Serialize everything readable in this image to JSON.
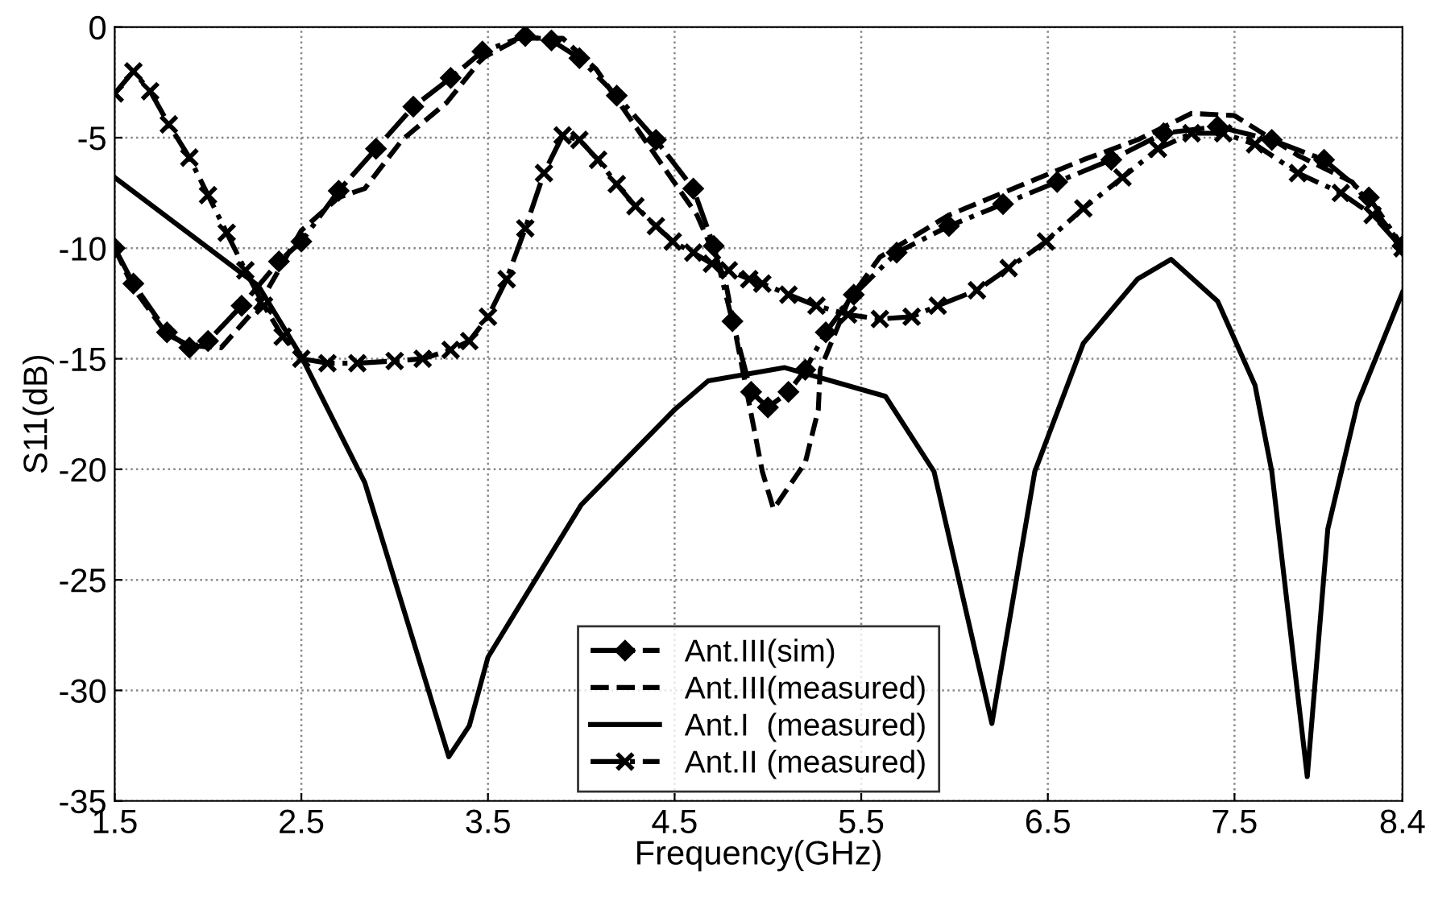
{
  "chart_data": {
    "type": "line",
    "xlabel": "Frequency(GHz)",
    "ylabel": "S11(dB)",
    "xlim": [
      1.5,
      8.4
    ],
    "xticks": [
      1.5,
      2.5,
      3.5,
      4.5,
      5.5,
      6.5,
      7.5,
      8.4
    ],
    "ylim": [
      -35,
      0
    ],
    "yticks": [
      -35,
      -30,
      -25,
      -20,
      -15,
      -10,
      -5,
      0
    ],
    "grid": true,
    "legend": "bottom",
    "series": [
      {
        "name": "Ant.III(sim)",
        "color": "#000000",
        "marker": "diamond",
        "line_style": "dashdot",
        "x": [
          1.5,
          1.6,
          1.78,
          1.9,
          2.0,
          2.18,
          2.38,
          2.5,
          2.7,
          2.9,
          3.1,
          3.3,
          3.47,
          3.7,
          3.84,
          3.99,
          4.19,
          4.4,
          4.6,
          4.71,
          4.81,
          4.91,
          5.0,
          5.11,
          5.2,
          5.31,
          5.46,
          5.69,
          5.97,
          6.26,
          6.55,
          6.84,
          7.12,
          7.41,
          7.7,
          7.98,
          8.22,
          8.4
        ],
        "values": [
          -10,
          -11.6,
          -13.8,
          -14.5,
          -14.2,
          -12.6,
          -10.6,
          -9.7,
          -7.4,
          -5.5,
          -3.6,
          -2.3,
          -1.1,
          -0.4,
          -0.6,
          -1.4,
          -3.1,
          -5.1,
          -7.3,
          -9.9,
          -13.3,
          -16.5,
          -17.2,
          -16.5,
          -15.5,
          -13.8,
          -12.1,
          -10.2,
          -9.0,
          -8.0,
          -7.0,
          -6.0,
          -4.8,
          -4.5,
          -5.1,
          -6.0,
          -7.7,
          -9.9
        ]
      },
      {
        "name": "Ant.III(measured)",
        "color": "#000000",
        "marker": "none",
        "line_style": "dashed",
        "x": [
          1.5,
          1.6,
          1.78,
          1.9,
          2.07,
          2.27,
          2.5,
          2.7,
          2.84,
          3.04,
          3.28,
          3.47,
          3.67,
          3.9,
          4.08,
          4.34,
          4.62,
          4.77,
          4.97,
          5.03,
          5.2,
          5.27,
          5.28,
          5.43,
          5.6,
          5.97,
          6.4,
          6.69,
          6.98,
          7.27,
          7.5,
          7.84,
          8.13,
          8.4
        ],
        "values": [
          -10,
          -11.8,
          -13.9,
          -14.4,
          -14.5,
          -12.6,
          -9.2,
          -7.7,
          -7.3,
          -5.1,
          -3.4,
          -1.4,
          -0.5,
          -0.5,
          -1.9,
          -5.1,
          -8.5,
          -11.4,
          -20.1,
          -21.8,
          -19.7,
          -17.3,
          -15.5,
          -12.4,
          -10.4,
          -8.5,
          -7.0,
          -6.0,
          -5.1,
          -3.9,
          -4.0,
          -5.8,
          -7.0,
          -9.9
        ]
      },
      {
        "name": "Ant.I  (measured)",
        "color": "#000000",
        "marker": "none",
        "line_style": "solid",
        "x": [
          1.5,
          2.27,
          2.5,
          2.84,
          3.29,
          3.4,
          3.5,
          4.0,
          4.5,
          4.68,
          5.09,
          5.63,
          5.89,
          6.2,
          6.43,
          6.69,
          6.98,
          7.16,
          7.41,
          7.61,
          7.7,
          7.89,
          8.0,
          8.16,
          8.4
        ],
        "values": [
          -6.8,
          -11.7,
          -14.9,
          -20.6,
          -33,
          -31.6,
          -28.5,
          -21.6,
          -17.3,
          -16,
          -15.4,
          -16.7,
          -20.1,
          -31.5,
          -20.1,
          -14.3,
          -11.4,
          -10.5,
          -12.4,
          -16.2,
          -20.1,
          -33.9,
          -22.7,
          -17,
          -12
        ]
      },
      {
        "name": "Ant.II (measured)",
        "color": "#000000",
        "marker": "cross",
        "line_style": "dashdot",
        "x": [
          1.5,
          1.6,
          1.69,
          1.79,
          1.9,
          2.0,
          2.1,
          2.2,
          2.3,
          2.4,
          2.5,
          2.64,
          2.8,
          3.0,
          3.15,
          3.3,
          3.4,
          3.5,
          3.6,
          3.7,
          3.8,
          3.9,
          3.99,
          4.09,
          4.19,
          4.29,
          4.4,
          4.49,
          4.6,
          4.7,
          4.79,
          4.9,
          4.97,
          5.11,
          5.26,
          5.43,
          5.6,
          5.77,
          5.91,
          6.12,
          6.29,
          6.49,
          6.69,
          6.9,
          7.09,
          7.27,
          7.44,
          7.61,
          7.84,
          8.07,
          8.24,
          8.4
        ],
        "values": [
          -3,
          -2.0,
          -2.9,
          -4.4,
          -5.9,
          -7.6,
          -9.3,
          -11,
          -12.6,
          -14,
          -15,
          -15.2,
          -15.2,
          -15.1,
          -15.0,
          -14.6,
          -14.2,
          -13.1,
          -11.4,
          -9.1,
          -6.6,
          -4.9,
          -5.1,
          -6.0,
          -7.1,
          -8.1,
          -9.0,
          -9.7,
          -10.2,
          -10.7,
          -11.0,
          -11.4,
          -11.6,
          -12.1,
          -12.6,
          -13.0,
          -13.2,
          -13.1,
          -12.6,
          -11.9,
          -10.9,
          -9.7,
          -8.2,
          -6.8,
          -5.5,
          -4.8,
          -4.8,
          -5.3,
          -6.6,
          -7.5,
          -8.5,
          -10
        ]
      }
    ]
  }
}
